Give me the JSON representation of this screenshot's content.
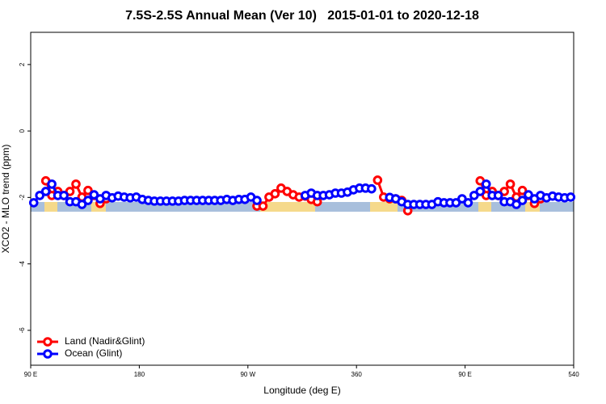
{
  "chart_data": {
    "type": "line",
    "title": "7.5S-2.5S Annual Mean (Ver 10)   2015-01-01 to 2020-12-18",
    "xlabel": "Longitude (deg E)",
    "ylabel": "XCO2 - MLO trend (ppm)",
    "x": [
      92.5,
      97.5,
      102.5,
      107.5,
      112.5,
      117.5,
      122.5,
      127.5,
      132.5,
      137.5,
      142.5,
      147.5,
      152.5,
      157.5,
      162.5,
      167.5,
      172.5,
      177.5,
      182.5,
      187.5,
      192.5,
      197.5,
      202.5,
      207.5,
      212.5,
      217.5,
      222.5,
      227.5,
      232.5,
      237.5,
      242.5,
      247.5,
      252.5,
      257.5,
      262.5,
      267.5,
      272.5,
      277.5,
      282.5,
      287.5,
      292.5,
      297.5,
      302.5,
      307.5,
      312.5,
      317.5,
      322.5,
      327.5,
      332.5,
      337.5,
      342.5,
      347.5,
      352.5,
      357.5,
      362.5,
      367.5,
      372.5,
      377.5,
      382.5,
      387.5,
      392.5,
      397.5,
      402.5,
      407.5,
      412.5,
      417.5,
      422.5,
      427.5,
      432.5,
      437.5,
      442.5,
      447.5,
      452.5,
      457.5,
      462.5,
      467.5,
      472.5,
      477.5,
      482.5,
      487.5,
      492.5,
      497.5,
      502.5,
      507.5,
      512.5,
      517.5,
      522.5,
      527.5,
      532.5,
      537.5
    ],
    "series": [
      {
        "name": "Land (Nadir&Glint)",
        "color": "#ff0000",
        "values": [
          null,
          null,
          -1.5,
          -1.94,
          -1.82,
          -1.94,
          -1.82,
          -1.6,
          -1.99,
          -1.79,
          -1.94,
          -2.18,
          -2.04,
          null,
          null,
          null,
          null,
          null,
          null,
          null,
          null,
          null,
          null,
          null,
          null,
          null,
          null,
          null,
          null,
          null,
          null,
          null,
          null,
          null,
          null,
          null,
          null,
          -2.26,
          -2.26,
          -1.99,
          -1.89,
          -1.72,
          -1.82,
          -1.92,
          -1.99,
          -1.96,
          -2.06,
          -2.13,
          null,
          null,
          null,
          null,
          null,
          null,
          null,
          null,
          null,
          -1.48,
          -1.99,
          -2.04,
          -2.04,
          -2.09,
          -2.4,
          null,
          null,
          null,
          null,
          null,
          null,
          null,
          null,
          null,
          null,
          null,
          -1.5,
          -1.94,
          -1.82,
          -1.94,
          -1.82,
          -1.6,
          -1.99,
          -1.79,
          -1.94,
          -2.18,
          -2.04,
          null,
          null,
          null,
          null,
          null
        ]
      },
      {
        "name": "Ocean (Glint)",
        "color": "#0000ff",
        "values": [
          -2.16,
          -1.94,
          -1.82,
          -1.6,
          -1.94,
          -1.94,
          -2.13,
          -2.13,
          -2.21,
          -2.09,
          -1.92,
          -2.04,
          -1.94,
          -2.01,
          -1.96,
          -1.99,
          -2.01,
          -1.99,
          -2.06,
          -2.09,
          -2.11,
          -2.11,
          -2.11,
          -2.11,
          -2.11,
          -2.09,
          -2.09,
          -2.09,
          -2.09,
          -2.09,
          -2.09,
          -2.09,
          -2.06,
          -2.09,
          -2.06,
          -2.06,
          -1.99,
          -2.09,
          null,
          null,
          null,
          null,
          null,
          null,
          null,
          -1.94,
          -1.87,
          -1.94,
          -1.94,
          -1.92,
          -1.87,
          -1.87,
          -1.84,
          -1.77,
          -1.72,
          -1.72,
          -1.74,
          null,
          null,
          -2.0,
          -2.04,
          -2.13,
          -2.21,
          -2.21,
          -2.21,
          -2.21,
          -2.21,
          -2.13,
          -2.16,
          -2.16,
          -2.16,
          -2.04,
          -2.16,
          -1.94,
          -1.82,
          -1.6,
          -1.94,
          -1.94,
          -2.13,
          -2.13,
          -2.21,
          -2.09,
          -1.92,
          -2.04,
          -1.94,
          -2.01,
          -1.96,
          -1.99,
          -2.01,
          -1.99
        ]
      }
    ],
    "xlim": [
      90,
      540
    ],
    "xticks": [
      {
        "value": 90,
        "label": "90 E"
      },
      180,
      {
        "value": 270,
        "label": "90 W"
      },
      360,
      {
        "value": 450,
        "label": "90 E"
      },
      540
    ],
    "ylim": [
      -7.05,
      2.97
    ],
    "yticks": [
      2,
      0,
      -2,
      -4,
      -6
    ],
    "legend": "bottom-left"
  }
}
